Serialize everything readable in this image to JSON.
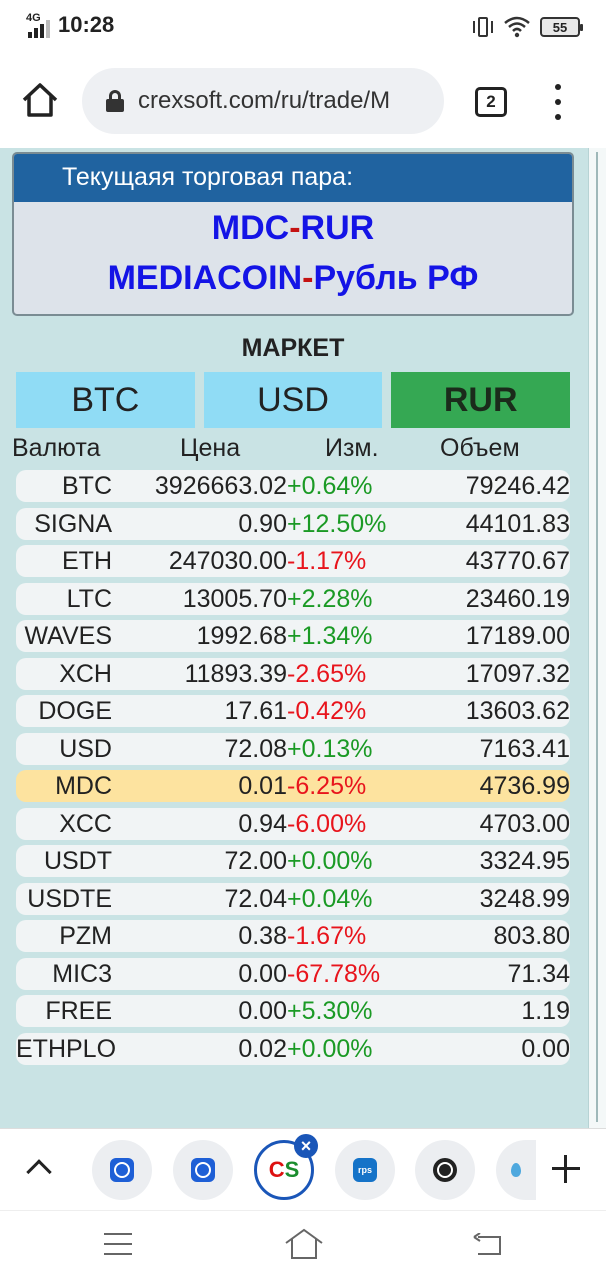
{
  "status_bar": {
    "network": "4G",
    "time": "10:28",
    "battery": "55",
    "icons": [
      "signal-icon",
      "vibrate-icon",
      "wifi-icon",
      "battery-icon"
    ]
  },
  "browser": {
    "url": "crexsoft.com/ru/trade/M",
    "tab_count": "2",
    "icons": [
      "home-icon",
      "lock-icon",
      "tabs-icon",
      "more-menu-icon"
    ]
  },
  "pair_panel": {
    "heading": "Текущаяя торговая пара:",
    "code_left": "MDC",
    "code_dash": "-",
    "code_right": "RUR",
    "name_left": "MEDIACOIN",
    "name_dash": "-",
    "name_right": "Рубль РФ"
  },
  "market": {
    "title": "МАРКЕТ",
    "tabs": [
      "BTC",
      "USD",
      "RUR"
    ],
    "active_tab": "RUR",
    "columns": {
      "currency": "Валюта",
      "price": "Цена",
      "change": "Изм.",
      "volume": "Объем"
    },
    "rows": [
      {
        "currency": "BTC",
        "price": "3926663.02",
        "change": "+0.64%",
        "volume": "79246.42"
      },
      {
        "currency": "SIGNA",
        "price": "0.90",
        "change": "+12.50%",
        "volume": "44101.83"
      },
      {
        "currency": "ETH",
        "price": "247030.00",
        "change": "-1.17%",
        "volume": "43770.67"
      },
      {
        "currency": "LTC",
        "price": "13005.70",
        "change": "+2.28%",
        "volume": "23460.19"
      },
      {
        "currency": "WAVES",
        "price": "1992.68",
        "change": "+1.34%",
        "volume": "17189.00"
      },
      {
        "currency": "XCH",
        "price": "11893.39",
        "change": "-2.65%",
        "volume": "17097.32"
      },
      {
        "currency": "DOGE",
        "price": "17.61",
        "change": "-0.42%",
        "volume": "13603.62"
      },
      {
        "currency": "USD",
        "price": "72.08",
        "change": "+0.13%",
        "volume": "7163.41"
      },
      {
        "currency": "MDC",
        "price": "0.01",
        "change": "-6.25%",
        "volume": "4736.99",
        "highlight": true
      },
      {
        "currency": "XCC",
        "price": "0.94",
        "change": "-6.00%",
        "volume": "4703.00"
      },
      {
        "currency": "USDT",
        "price": "72.00",
        "change": "+0.00%",
        "volume": "3324.95"
      },
      {
        "currency": "USDTE",
        "price": "72.04",
        "change": "+0.04%",
        "volume": "3248.99"
      },
      {
        "currency": "PZM",
        "price": "0.38",
        "change": "-1.67%",
        "volume": "803.80"
      },
      {
        "currency": "MIC3",
        "price": "0.00",
        "change": "-67.78%",
        "volume": "71.34"
      },
      {
        "currency": "FREE",
        "price": "0.00",
        "change": "+5.30%",
        "volume": "1.19"
      },
      {
        "currency": "ETHPLO",
        "price": "0.02",
        "change": "+0.00%",
        "volume": "0.00"
      }
    ]
  },
  "tab_strip": {
    "active_tab_label": "CS",
    "tabs": [
      "coinmarketcap-tab",
      "coinmarketcap-tab-2",
      "crexsoft-tab",
      "rps-tab",
      "globe-tab",
      "drop-tab"
    ]
  },
  "colors": {
    "page_bg": "#c9e3e4",
    "panel_header": "#2063a0",
    "tab_inactive": "#90dcf5",
    "tab_active": "#35a853",
    "positive": "#1b9a25",
    "negative": "#e8141c",
    "highlight_row": "#fde39f",
    "pair_code": "#1414e6"
  }
}
